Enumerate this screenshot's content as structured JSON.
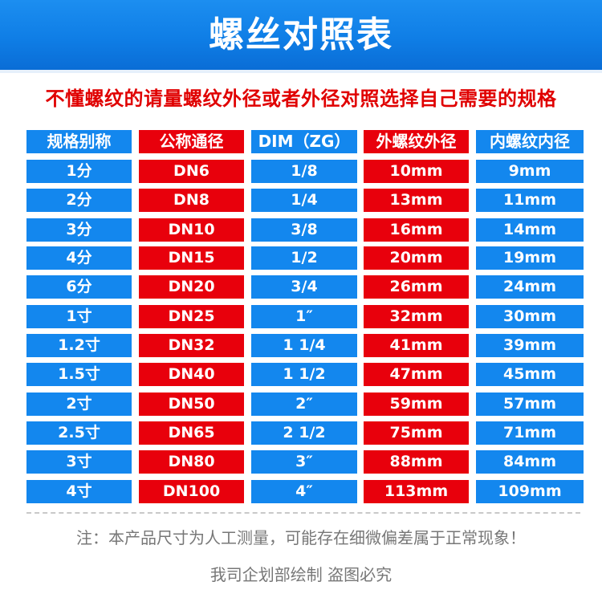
{
  "banner": {
    "title": "螺丝对照表"
  },
  "subtitle": "不懂螺纹的请量螺纹外径或者外径对照选择自己需要的规格",
  "table": {
    "headers": [
      "规格别称",
      "公称通径",
      "DIM（ZG）",
      "外螺纹外径",
      "内螺纹内径"
    ],
    "rows": [
      [
        "1分",
        "DN6",
        "1/8",
        "10mm",
        "9mm"
      ],
      [
        "2分",
        "DN8",
        "1/4",
        "13mm",
        "11mm"
      ],
      [
        "3分",
        "DN10",
        "3/8",
        "16mm",
        "14mm"
      ],
      [
        "4分",
        "DN15",
        "1/2",
        "20mm",
        "19mm"
      ],
      [
        "6分",
        "DN20",
        "3/4",
        "26mm",
        "24mm"
      ],
      [
        "1寸",
        "DN25",
        "1″",
        "32mm",
        "30mm"
      ],
      [
        "1.2寸",
        "DN32",
        "1  1/4",
        "41mm",
        "39mm"
      ],
      [
        "1.5寸",
        "DN40",
        "1  1/2",
        "47mm",
        "45mm"
      ],
      [
        "2寸",
        "DN50",
        "2″",
        "59mm",
        "57mm"
      ],
      [
        "2.5寸",
        "DN65",
        "2  1/2",
        "75mm",
        "71mm"
      ],
      [
        "3寸",
        "DN80",
        "3″",
        "88mm",
        "84mm"
      ],
      [
        "4寸",
        "DN100",
        "4″",
        "113mm",
        "109mm"
      ]
    ],
    "colors": {
      "blue": "#1387ee",
      "red": "#e8000c"
    }
  },
  "note": "注：本产品尺寸为人工测量，可能存在细微偏差属于正常现象！",
  "footer": "我司企划部绘制 盗图必究"
}
